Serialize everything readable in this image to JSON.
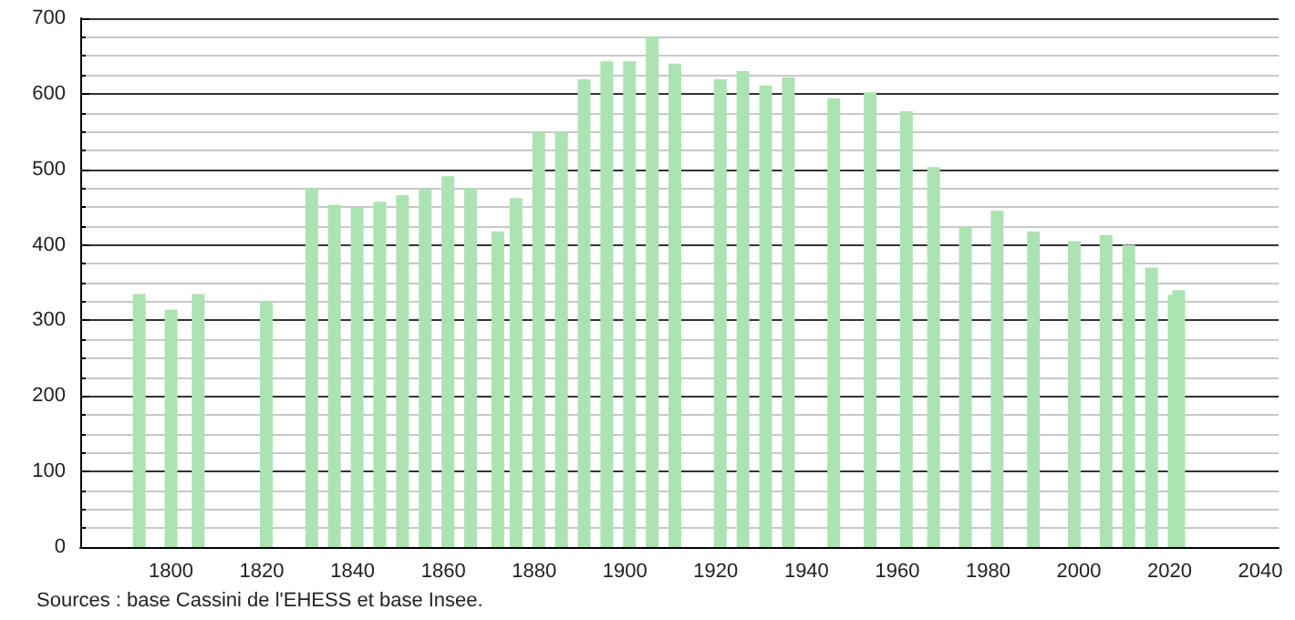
{
  "chart_data": {
    "type": "bar",
    "x": [
      1793,
      1800,
      1806,
      1821,
      1831,
      1836,
      1841,
      1846,
      1851,
      1856,
      1861,
      1866,
      1872,
      1876,
      1881,
      1886,
      1891,
      1896,
      1901,
      1906,
      1911,
      1921,
      1926,
      1931,
      1936,
      1946,
      1954,
      1962,
      1968,
      1975,
      1982,
      1990,
      1999,
      2006,
      2011,
      2016,
      2021,
      2022
    ],
    "values": [
      335,
      314,
      335,
      326,
      475,
      453,
      449,
      457,
      466,
      473,
      491,
      475,
      418,
      462,
      549,
      549,
      619,
      643,
      643,
      676,
      640,
      619,
      630,
      611,
      622,
      594,
      602,
      577,
      503,
      424,
      445,
      418,
      405,
      413,
      400,
      370,
      334,
      340
    ],
    "color": "#abe3b2",
    "xlim": [
      1780,
      2044
    ],
    "xticks": [
      1800,
      1820,
      1840,
      1860,
      1880,
      1900,
      1920,
      1940,
      1960,
      1980,
      2000,
      2020,
      2040
    ],
    "ylim": [
      0,
      700
    ],
    "yticks": [
      0,
      100,
      200,
      300,
      400,
      500,
      600,
      700
    ],
    "grid": "y",
    "annotations": [
      "Sources : base Cassini de l'EHESS et base Insee."
    ]
  }
}
